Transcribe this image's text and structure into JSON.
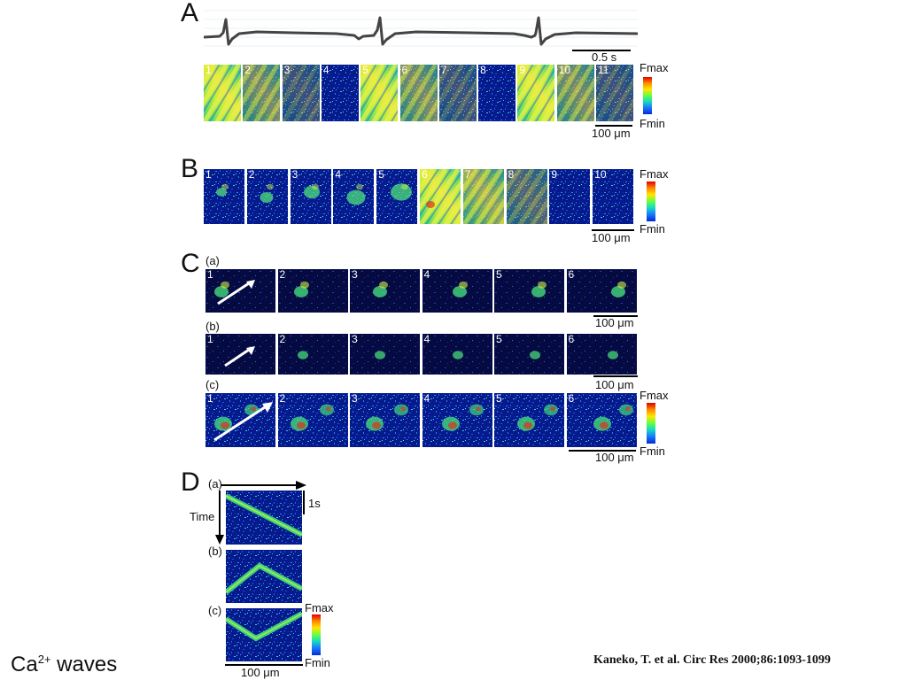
{
  "slide": {
    "title_main": "Ca",
    "title_sup": "2+",
    "title_rest": " waves",
    "citation": "Kaneko, T. et al. Circ Res 2000;86:1093-1099"
  },
  "panelA": {
    "letter": "A",
    "time_scale": "0.5 s",
    "scale": "100 μm",
    "fmax": "Fmax",
    "fmin": "Fmin",
    "frames": [
      "1",
      "2",
      "3",
      "4",
      "5",
      "6",
      "7",
      "8",
      "9",
      "10",
      "11"
    ],
    "bright_frames": [
      1,
      5,
      9
    ]
  },
  "panelB": {
    "letter": "B",
    "scale": "100 μm",
    "fmax": "Fmax",
    "fmin": "Fmin",
    "frames": [
      "1",
      "2",
      "3",
      "4",
      "5",
      "6",
      "7",
      "8",
      "9",
      "10"
    ]
  },
  "panelC": {
    "letter": "C",
    "sub_a": "(a)",
    "sub_b": "(b)",
    "sub_c": "(c)",
    "scale_a": "100 μm",
    "scale_b": "100 μm",
    "scale_c": "100 μm",
    "fmax": "Fmax",
    "fmin": "Fmin",
    "frames": [
      "1",
      "2",
      "3",
      "4",
      "5",
      "6"
    ]
  },
  "panelD": {
    "letter": "D",
    "sub_a": "(a)",
    "sub_b": "(b)",
    "sub_c": "(c)",
    "time_label": "Time",
    "time_scale": "1s",
    "scale": "100 μm",
    "fmax": "Fmax",
    "fmin": "Fmin"
  },
  "colors": {
    "noise_bg": "#0a1a8c",
    "wave_green": "#52e26a",
    "wave_yellow": "#d8f04a",
    "hot_red": "#e2301a"
  }
}
